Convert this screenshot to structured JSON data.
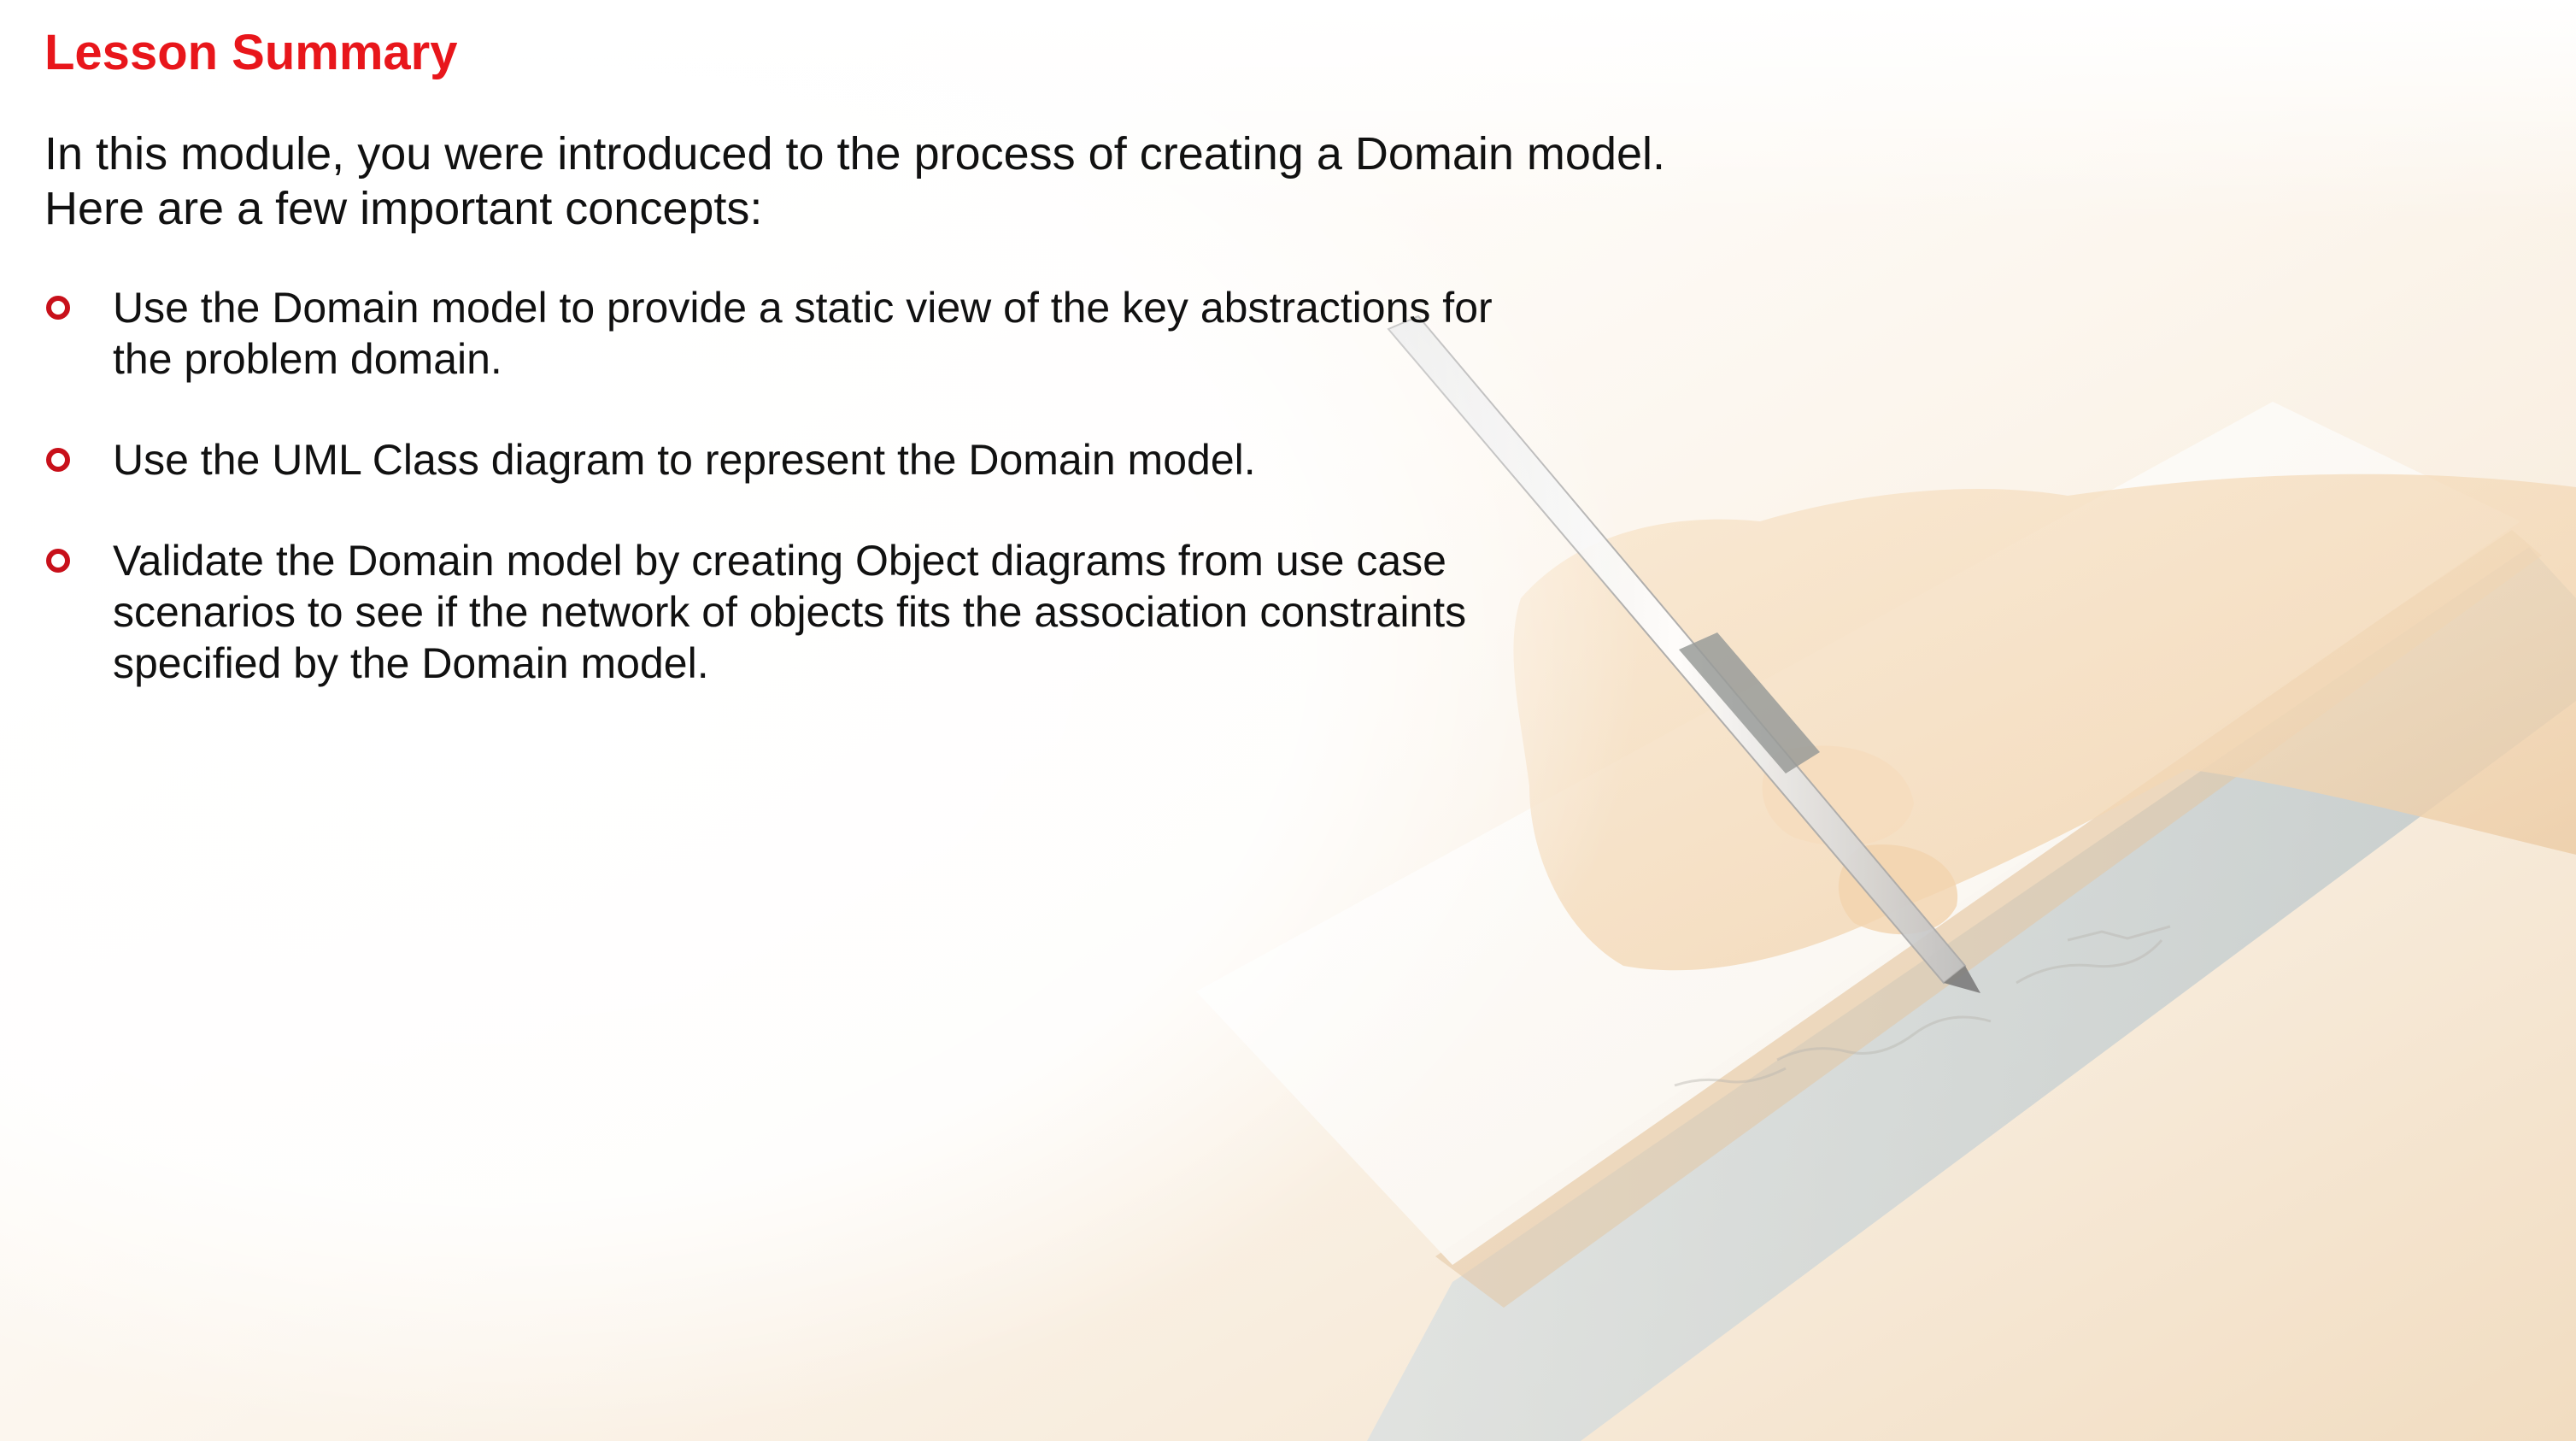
{
  "slide": {
    "title": "Lesson Summary",
    "intro": "In this module, you were introduced to the process of creating a Domain model. Here are a few important concepts:",
    "bullets": [
      {
        "text": "Use the Domain model to provide a static view of the key abstractions for the problem domain."
      },
      {
        "text": "Use the UML Class diagram to represent the Domain model."
      },
      {
        "text": "Validate the Domain model by creating Object diagrams from use case scenarios to see if the network of objects fits the association constraints specified by the Domain model."
      }
    ]
  },
  "colors": {
    "title": "#e8161b",
    "bullet_marker": "#c8101a",
    "body_text": "#111111"
  },
  "icons": {
    "bullet_marker": "ring-bullet-icon",
    "background": "hand-writing-in-notebook-illustration"
  }
}
